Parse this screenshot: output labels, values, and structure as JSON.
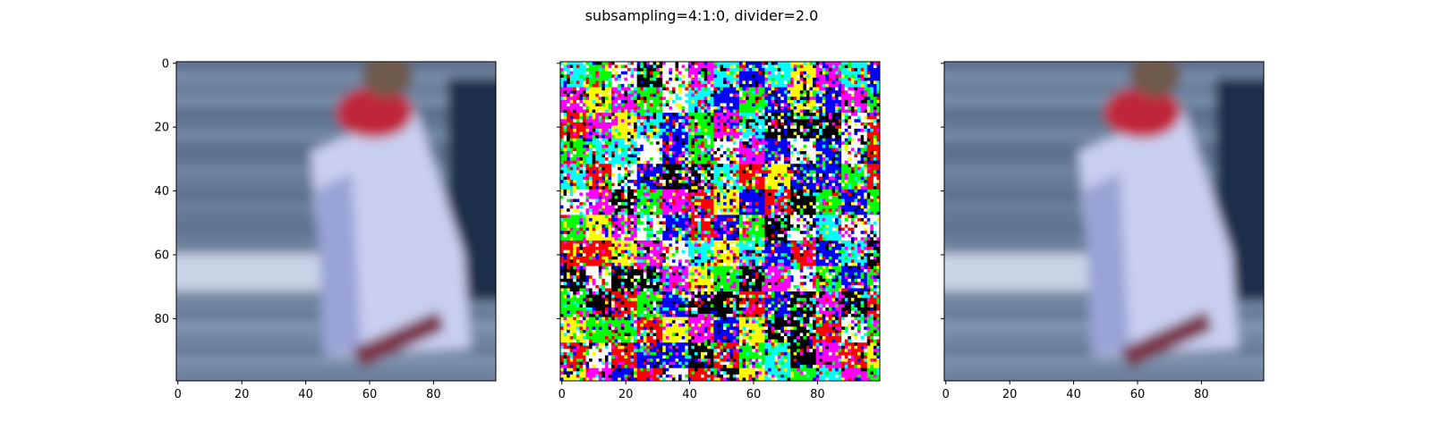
{
  "chart_data": {
    "type": "heatmap",
    "title": "subsampling=4:1:0, divider=2.0",
    "panels": [
      {
        "name": "left",
        "content": "blurred photo crop: person in white shirt with red scarf, water background",
        "x_ticks": [
          0,
          20,
          40,
          60,
          80
        ],
        "y_ticks": [
          0,
          20,
          40,
          60,
          80
        ],
        "show_y_labels": true,
        "xlim": [
          -0.5,
          99.5
        ],
        "ylim": [
          99.5,
          -0.5
        ]
      },
      {
        "name": "middle",
        "content": "random 8-color noise (black, white, red, green, blue, cyan, magenta, yellow) in 8x8 blocks",
        "x_ticks": [
          0,
          20,
          40,
          60,
          80
        ],
        "y_ticks": [
          0,
          20,
          40,
          60,
          80
        ],
        "show_y_labels": false,
        "xlim": [
          -0.5,
          99.5
        ],
        "ylim": [
          99.5,
          -0.5
        ]
      },
      {
        "name": "right",
        "content": "reconstructed blurred photo crop (same as left)",
        "x_ticks": [
          0,
          20,
          40,
          60,
          80
        ],
        "y_ticks": [
          0,
          20,
          40,
          60,
          80
        ],
        "show_y_labels": false,
        "xlim": [
          -0.5,
          99.5
        ],
        "ylim": [
          99.5,
          -0.5
        ]
      }
    ],
    "noise_palette": [
      "#000000",
      "#ffffff",
      "#ff0000",
      "#00ff00",
      "#0000ff",
      "#00ffff",
      "#ff00ff",
      "#ffff00"
    ],
    "photo_colors": {
      "water_dark": "#5b6f8c",
      "water_light": "#8aa0bb",
      "shirt": "#c9cff0",
      "shirt_shadow": "#9aa3d6",
      "scarf": "#c0283a",
      "hair": "#6e5a4d",
      "dark_edge": "#1f2f4a"
    }
  }
}
